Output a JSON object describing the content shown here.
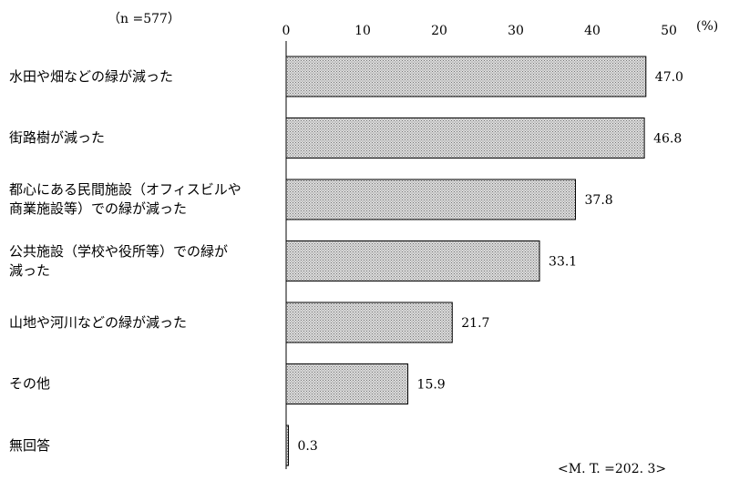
{
  "chart_data": {
    "type": "bar",
    "orientation": "horizontal",
    "categories": [
      "水田や畑などの緑が減った",
      "街路樹が減った",
      "都心にある民間施設（オフィスビルや\n商業施設等）での緑が減った",
      "公共施設（学校や役所等）での緑が\n減った",
      "山地や河川などの緑が減った",
      "その他",
      "無回答"
    ],
    "values": [
      47.0,
      46.8,
      37.8,
      33.1,
      21.7,
      15.9,
      0.3
    ],
    "value_labels": [
      "47.0",
      "46.8",
      "37.8",
      "33.1",
      "21.7",
      "15.9",
      "0.3"
    ],
    "xlim": [
      0,
      50
    ],
    "x_ticks": [
      0,
      10,
      20,
      30,
      40,
      50
    ],
    "unit_label": "(%)",
    "sample_size_label": "（n =577）",
    "total_label": "<M. T. =202. 3>",
    "grid": false,
    "bar_fill": "#cccccc",
    "bar_pattern_dot": "#777777",
    "bar_stroke": "#000000"
  }
}
